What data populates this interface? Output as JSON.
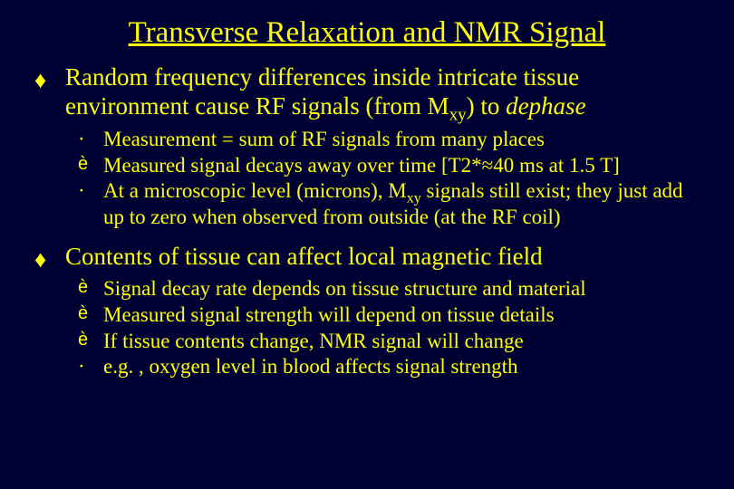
{
  "title": "Transverse Relaxation and NMR Signal",
  "main1": {
    "pre": "Random frequency differences inside intricate tissue environment cause RF signals (from M",
    "sub": "xy",
    "post1": ") to ",
    "italic": "dephase"
  },
  "sub1a": "Measurement = sum of RF signals from many places",
  "sub1b": "Measured signal decays away over time [T2*≈40 ms at 1.5 T]",
  "sub1c": {
    "pre": "At a microscopic level (microns), M",
    "sub": "xy",
    "post": " signals still exist; they just add up to zero when observed from outside (at the RF coil)"
  },
  "main2": "Contents of tissue can affect local magnetic field",
  "sub2a": "Signal decay rate depends on tissue structure and material",
  "sub2b": "Measured signal strength will depend on tissue details",
  "sub2c": "If tissue contents change, NMR signal will change",
  "sub2d": "e.g. , oxygen level in blood affects signal strength",
  "markers": {
    "diamond": "♦",
    "dot": "·",
    "arrow": "è"
  }
}
